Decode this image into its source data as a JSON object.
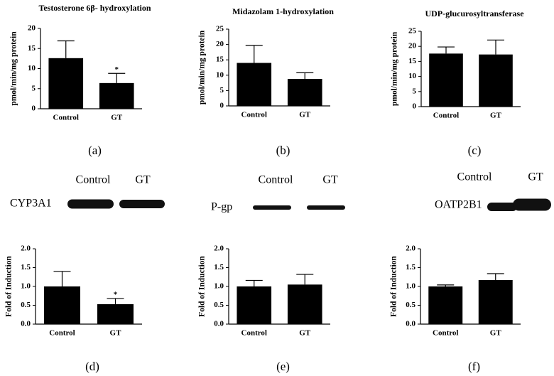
{
  "chart_data": [
    {
      "type": "bar",
      "panel": "(a)",
      "title": "Testosterone 6β- hydroxylation",
      "ylabel": "pmol/min/mg protein",
      "categories": [
        "Control",
        "GT"
      ],
      "values": [
        12.6,
        6.4
      ],
      "errors": [
        4.3,
        2.4
      ],
      "color": "#000000",
      "ylim": [
        0,
        20
      ],
      "yticks": [
        0,
        5,
        10,
        15,
        20
      ],
      "annotations": [
        {
          "text": "*",
          "x": "GT"
        }
      ]
    },
    {
      "type": "bar",
      "panel": "(b)",
      "title": "Midazolam 1-hydroxylation",
      "ylabel": "pmol/min/mg protein",
      "categories": [
        "Control",
        "GT"
      ],
      "values": [
        14.0,
        8.8
      ],
      "errors": [
        5.7,
        2.0
      ],
      "color": "#000000",
      "ylim": [
        0,
        25
      ],
      "yticks": [
        0,
        5,
        10,
        15,
        20,
        25
      ]
    },
    {
      "type": "bar",
      "panel": "(c)",
      "title": "UDP-glucurosyltransferase",
      "ylabel": "pmol/min/mg protein",
      "categories": [
        "Control",
        "GT"
      ],
      "values": [
        17.6,
        17.3
      ],
      "errors": [
        2.2,
        4.8
      ],
      "color": "#000000",
      "ylim": [
        0,
        25
      ],
      "yticks": [
        0,
        5,
        10,
        15,
        20,
        25
      ]
    },
    {
      "type": "bar",
      "panel": "(d)",
      "ylabel": "Fold of Induction",
      "blot": {
        "protein": "CYP3A1",
        "lanes": [
          "Control",
          "GT"
        ]
      },
      "categories": [
        "Control",
        "GT"
      ],
      "values": [
        1.0,
        0.53
      ],
      "errors": [
        0.4,
        0.15
      ],
      "color": "#000000",
      "ylim": [
        0,
        2
      ],
      "yticks": [
        {
          "value": 0,
          "label": "0.0"
        },
        0.5,
        {
          "value": 1,
          "label": "1.0"
        },
        1.5,
        {
          "value": 2,
          "label": "2.0"
        }
      ],
      "annotations": [
        {
          "text": "*",
          "x": "GT"
        }
      ]
    },
    {
      "type": "bar",
      "panel": "(e)",
      "ylabel": "Fold of Induction",
      "blot": {
        "protein": "P-gp",
        "lanes": [
          "Control",
          "GT"
        ]
      },
      "categories": [
        "Control",
        "GT"
      ],
      "values": [
        1.0,
        1.05
      ],
      "errors": [
        0.16,
        0.27
      ],
      "color": "#000000",
      "ylim": [
        0,
        2
      ],
      "yticks": [
        {
          "value": 0,
          "label": "0.0"
        },
        0.5,
        {
          "value": 1,
          "label": "1.0"
        },
        1.5,
        {
          "value": 2,
          "label": "2.0"
        }
      ]
    },
    {
      "type": "bar",
      "panel": "(f)",
      "ylabel": "Fold of Induction",
      "blot": {
        "protein": "OATP2B1",
        "lanes": [
          "Control",
          "GT"
        ]
      },
      "categories": [
        "Control",
        "GT"
      ],
      "values": [
        1.0,
        1.17
      ],
      "errors": [
        0.04,
        0.17
      ],
      "color": "#000000",
      "ylim": [
        0,
        2
      ],
      "yticks": [
        {
          "value": 0,
          "label": "0.0"
        },
        0.5,
        {
          "value": 1,
          "label": "1.0"
        },
        1.5,
        {
          "value": 2,
          "label": "2.0"
        }
      ]
    }
  ]
}
